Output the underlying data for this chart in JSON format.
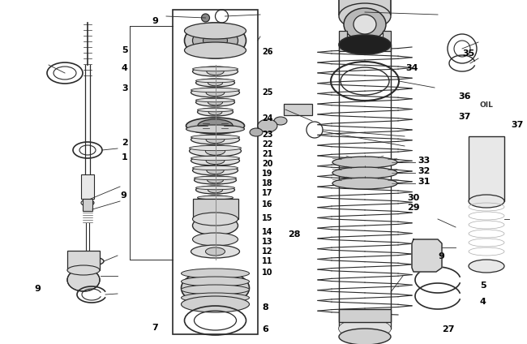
{
  "bg_color": "#ffffff",
  "line_color": "#2a2a2a",
  "fig_width": 6.5,
  "fig_height": 4.24,
  "dpi": 100
}
